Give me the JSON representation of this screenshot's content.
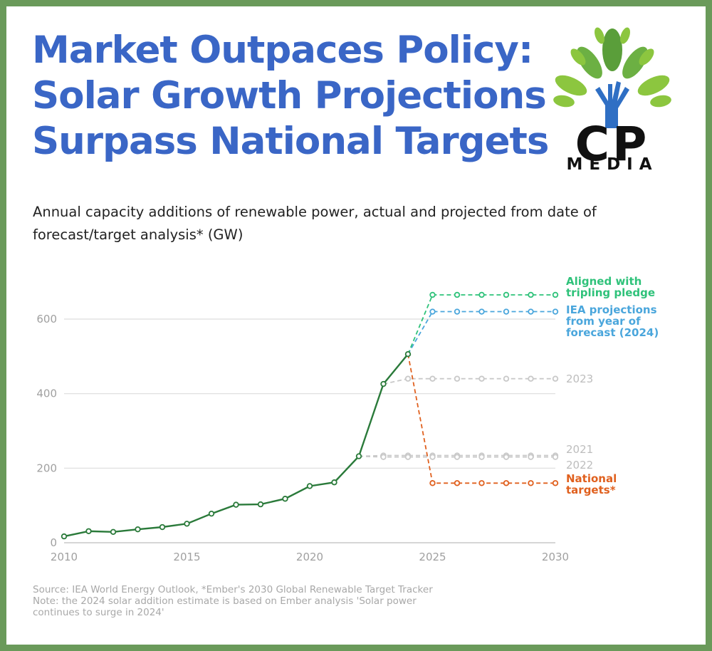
{
  "title": {
    "line1": "Market Outpaces Policy:",
    "line2": "Solar Growth Projections",
    "line3": "Surpass National Targets"
  },
  "logo": {
    "letters": "CP",
    "word": "MEDIA"
  },
  "subtitle": "Annual capacity additions of renewable power, actual and projected from date of forecast/target analysis* (GW)",
  "source": {
    "line1": "Source: IEA World Energy Outlook, *Ember's 2030 Global Renewable Target Tracker",
    "line2": "Note: the 2024 solar addition estimate is based on Ember analysis 'Solar power",
    "line3": "continues to surge in 2024'"
  },
  "colors": {
    "title": "#3a66c6",
    "frame": "#6a9a5a",
    "actual": "#2a7a3a",
    "tripling": "#2fc27a",
    "iea": "#4aa6dc",
    "national": "#e0601e",
    "forecast_grey": "#c9c9c9",
    "label_grey": "#bdbdbd",
    "grid": "#dddddd"
  },
  "chart_data": {
    "type": "line",
    "title": "Annual capacity additions of renewable power, actual and projected from date of forecast/target analysis* (GW)",
    "xlabel": "",
    "ylabel": "GW",
    "xlim": [
      2010,
      2030
    ],
    "ylim": [
      0,
      650
    ],
    "x_ticks": [
      2010,
      2015,
      2020,
      2025,
      2030
    ],
    "y_ticks": [
      0,
      200,
      400,
      600
    ],
    "grid": "horizontal",
    "series": [
      {
        "name": "Actual",
        "key": "actual",
        "style": "solid",
        "label_lines": [],
        "x": [
          2010,
          2011,
          2012,
          2013,
          2014,
          2015,
          2016,
          2017,
          2018,
          2019,
          2020,
          2021,
          2022,
          2023,
          2024
        ],
        "y": [
          17,
          31,
          29,
          36,
          42,
          51,
          78,
          102,
          103,
          118,
          152,
          162,
          232,
          426,
          506
        ]
      },
      {
        "name": "Aligned with tripling pledge",
        "key": "tripling",
        "style": "dashed",
        "label_lines": [
          "Aligned with",
          "tripling pledge"
        ],
        "x": [
          2024,
          2025,
          2026,
          2027,
          2028,
          2029,
          2030
        ],
        "y": [
          506,
          665,
          665,
          665,
          665,
          665,
          665
        ]
      },
      {
        "name": "IEA projections from year of forecast (2024)",
        "key": "iea",
        "style": "dashed",
        "label_lines": [
          "IEA projections",
          "from year of",
          "forecast (2024)"
        ],
        "x": [
          2024,
          2025,
          2026,
          2027,
          2028,
          2029,
          2030
        ],
        "y": [
          506,
          620,
          620,
          620,
          620,
          620,
          620
        ]
      },
      {
        "name": "2023",
        "key": "f2023",
        "style": "dashed",
        "label_lines": [
          "2023"
        ],
        "x": [
          2023,
          2024,
          2025,
          2026,
          2027,
          2028,
          2029,
          2030
        ],
        "y": [
          426,
          440,
          440,
          440,
          440,
          440,
          440,
          440
        ]
      },
      {
        "name": "2021",
        "key": "f2021",
        "style": "dashed",
        "label_lines": [
          "2021"
        ],
        "x": [
          2022,
          2023,
          2024,
          2025,
          2026,
          2027,
          2028,
          2029,
          2030
        ],
        "y": [
          232,
          234,
          234,
          234,
          234,
          234,
          234,
          234,
          234
        ]
      },
      {
        "name": "2022",
        "key": "f2022",
        "style": "dashed",
        "label_lines": [
          "2022"
        ],
        "x": [
          2022,
          2023,
          2024,
          2025,
          2026,
          2027,
          2028,
          2029,
          2030
        ],
        "y": [
          232,
          230,
          230,
          230,
          230,
          230,
          230,
          230,
          230
        ]
      },
      {
        "name": "National targets*",
        "key": "national",
        "style": "dashed",
        "label_lines": [
          "National",
          "targets*"
        ],
        "x": [
          2024,
          2025,
          2026,
          2027,
          2028,
          2029,
          2030
        ],
        "y": [
          506,
          160,
          160,
          160,
          160,
          160,
          160
        ]
      }
    ]
  }
}
